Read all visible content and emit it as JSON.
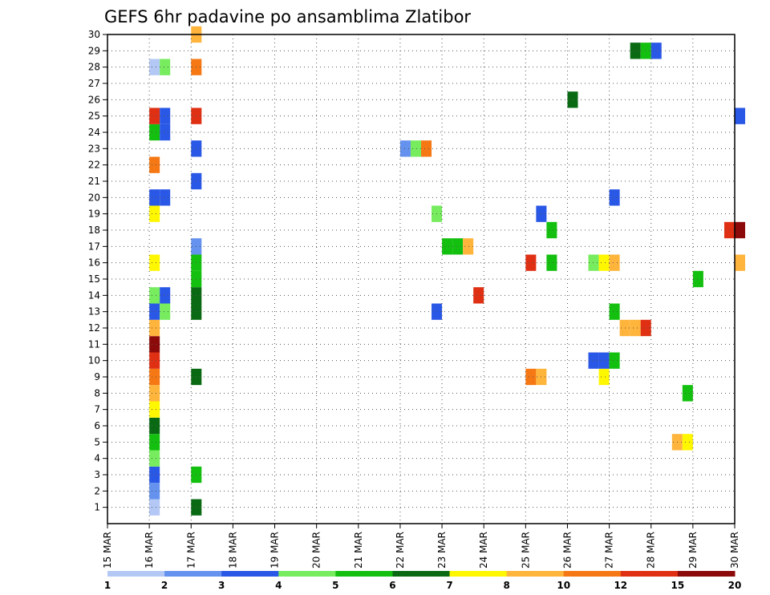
{
  "chart_data": {
    "type": "heatmap",
    "title": "GEFS 6hr padavine po ansamblima Zlatibor",
    "xlabel": "",
    "ylabel": "",
    "x_ticks": [
      "15 MAR",
      "16 MAR",
      "17 MAR",
      "18 MAR",
      "19 MAR",
      "20 MAR",
      "21 MAR",
      "22 MAR",
      "23 MAR",
      "24 MAR",
      "25 MAR",
      "26 MAR",
      "27 MAR",
      "28 MAR",
      "29 MAR",
      "30 MAR"
    ],
    "xlim": [
      "15 MAR",
      "30 MAR"
    ],
    "y_ticks": [
      1,
      2,
      3,
      4,
      5,
      6,
      7,
      8,
      9,
      10,
      11,
      12,
      13,
      14,
      15,
      16,
      17,
      18,
      19,
      20,
      21,
      22,
      23,
      24,
      25,
      26,
      27,
      28,
      29,
      30
    ],
    "ylim": [
      0,
      30
    ],
    "grid": true,
    "time_step_hours": 6,
    "colorbar": {
      "levels": [
        "1",
        "2",
        "3",
        "4",
        "5",
        "6",
        "7",
        "8",
        "10",
        "12",
        "15",
        "20"
      ],
      "colors": [
        "#b4c8f6",
        "#6492ee",
        "#2a58e6",
        "#76ec5e",
        "#14c00f",
        "#0a6a14",
        "#fff700",
        "#ffb43c",
        "#f57814",
        "#e03014",
        "#8c0a0a"
      ]
    },
    "cells": [
      [
        "16 MAR 00Z",
        1,
        1
      ],
      [
        "16 MAR 00Z",
        2,
        2
      ],
      [
        "16 MAR 00Z",
        3,
        3
      ],
      [
        "16 MAR 00Z",
        4,
        4
      ],
      [
        "16 MAR 00Z",
        5,
        5
      ],
      [
        "16 MAR 00Z",
        6,
        6
      ],
      [
        "16 MAR 00Z",
        7,
        7
      ],
      [
        "16 MAR 00Z",
        8,
        8
      ],
      [
        "16 MAR 00Z",
        9,
        9
      ],
      [
        "16 MAR 00Z",
        10,
        10
      ],
      [
        "16 MAR 00Z",
        11,
        11
      ],
      [
        "16 MAR 00Z",
        12,
        8
      ],
      [
        "16 MAR 00Z",
        13,
        3
      ],
      [
        "16 MAR 00Z",
        14,
        4
      ],
      [
        "16 MAR 00Z",
        16,
        7
      ],
      [
        "16 MAR 00Z",
        19,
        7
      ],
      [
        "16 MAR 00Z",
        20,
        3
      ],
      [
        "16 MAR 00Z",
        22,
        9
      ],
      [
        "16 MAR 00Z",
        24,
        5
      ],
      [
        "16 MAR 00Z",
        25,
        10
      ],
      [
        "16 MAR 00Z",
        28,
        1
      ],
      [
        "16 MAR 06Z",
        13,
        4
      ],
      [
        "16 MAR 06Z",
        14,
        3
      ],
      [
        "16 MAR 06Z",
        20,
        3
      ],
      [
        "16 MAR 06Z",
        24,
        3
      ],
      [
        "16 MAR 06Z",
        25,
        3
      ],
      [
        "16 MAR 06Z",
        28,
        4
      ],
      [
        "17 MAR 00Z",
        1,
        6
      ],
      [
        "17 MAR 00Z",
        3,
        5
      ],
      [
        "17 MAR 00Z",
        9,
        6
      ],
      [
        "17 MAR 00Z",
        13,
        6
      ],
      [
        "17 MAR 00Z",
        14,
        6
      ],
      [
        "17 MAR 00Z",
        15,
        5
      ],
      [
        "17 MAR 00Z",
        16,
        5
      ],
      [
        "17 MAR 00Z",
        17,
        2
      ],
      [
        "17 MAR 00Z",
        21,
        3
      ],
      [
        "17 MAR 00Z",
        23,
        3
      ],
      [
        "17 MAR 00Z",
        25,
        10
      ],
      [
        "17 MAR 00Z",
        28,
        9
      ],
      [
        "17 MAR 00Z",
        30,
        8
      ],
      [
        "22 MAR 00Z",
        23,
        2
      ],
      [
        "22 MAR 06Z",
        23,
        4
      ],
      [
        "22 MAR 12Z",
        23,
        9
      ],
      [
        "22 MAR 18Z",
        13,
        3
      ],
      [
        "22 MAR 18Z",
        19,
        4
      ],
      [
        "23 MAR 00Z",
        17,
        5
      ],
      [
        "23 MAR 06Z",
        17,
        5
      ],
      [
        "23 MAR 12Z",
        17,
        8
      ],
      [
        "23 MAR 18Z",
        14,
        10
      ],
      [
        "25 MAR 00Z",
        9,
        9
      ],
      [
        "25 MAR 00Z",
        16,
        10
      ],
      [
        "25 MAR 06Z",
        9,
        8
      ],
      [
        "25 MAR 06Z",
        19,
        3
      ],
      [
        "25 MAR 12Z",
        16,
        5
      ],
      [
        "25 MAR 12Z",
        18,
        5
      ],
      [
        "26 MAR 00Z",
        26,
        6
      ],
      [
        "26 MAR 12Z",
        10,
        3
      ],
      [
        "26 MAR 12Z",
        16,
        4
      ],
      [
        "26 MAR 18Z",
        9,
        7
      ],
      [
        "26 MAR 18Z",
        10,
        3
      ],
      [
        "26 MAR 18Z",
        16,
        7
      ],
      [
        "27 MAR 00Z",
        10,
        5
      ],
      [
        "27 MAR 00Z",
        13,
        5
      ],
      [
        "27 MAR 00Z",
        16,
        8
      ],
      [
        "27 MAR 00Z",
        20,
        3
      ],
      [
        "27 MAR 06Z",
        12,
        8
      ],
      [
        "27 MAR 12Z",
        12,
        8
      ],
      [
        "27 MAR 12Z",
        29,
        6
      ],
      [
        "27 MAR 18Z",
        12,
        10
      ],
      [
        "27 MAR 18Z",
        29,
        5
      ],
      [
        "28 MAR 00Z",
        29,
        3
      ],
      [
        "28 MAR 12Z",
        5,
        8
      ],
      [
        "28 MAR 18Z",
        5,
        7
      ],
      [
        "28 MAR 18Z",
        8,
        5
      ],
      [
        "29 MAR 00Z",
        15,
        5
      ],
      [
        "29 MAR 18Z",
        18,
        10
      ],
      [
        "30 MAR 00Z",
        16,
        8
      ],
      [
        "30 MAR 00Z",
        18,
        11
      ],
      [
        "30 MAR 00Z",
        25,
        3
      ]
    ]
  }
}
